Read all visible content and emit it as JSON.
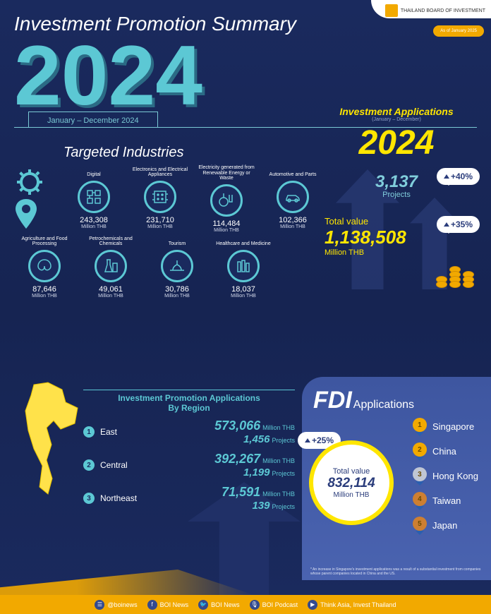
{
  "colors": {
    "bg_top": "#1a2a5e",
    "teal": "#5cc8d4",
    "yellow": "#ffe600",
    "gold": "#f2a900",
    "panel": "#3e56a0"
  },
  "header": {
    "title": "Investment Promotion Summary",
    "logo_text": "THAILAND BOARD OF INVESTMENT",
    "as_of": "As of January 2025",
    "year": "2024",
    "period": "January – December 2024"
  },
  "targeted": {
    "title": "Targeted Industries",
    "unit": "Million THB",
    "items": [
      {
        "label": "Digital",
        "value": "243,308"
      },
      {
        "label": "Electronics and Electrical Appliances",
        "value": "231,710"
      },
      {
        "label": "Electricity generated from Renewable Energy or Waste",
        "value": "114,484"
      },
      {
        "label": "Automotive and Parts",
        "value": "102,366"
      },
      {
        "label": "Agriculture and Food Processing",
        "value": "87,646"
      },
      {
        "label": "Petrochemicals and Chemicals",
        "value": "49,061"
      },
      {
        "label": "Tourism",
        "value": "30,786"
      },
      {
        "label": "Healthcare and Medicine",
        "value": "18,037"
      }
    ]
  },
  "applications": {
    "title": "Investment Applications",
    "subtitle": "(January – December)",
    "year": "2024",
    "projects_value": "3,137",
    "projects_label": "Projects",
    "projects_pct": "+40%",
    "total_label": "Total value",
    "total_value": "1,138,508",
    "total_unit": "Million THB",
    "total_pct": "+35%"
  },
  "region": {
    "title1": "Investment Promotion Applications",
    "title2": "By Region",
    "unit_value": "Million THB",
    "unit_proj": "Projects",
    "rows": [
      {
        "rank": "1",
        "name": "East",
        "value": "573,066",
        "projects": "1,456"
      },
      {
        "rank": "2",
        "name": "Central",
        "value": "392,267",
        "projects": "1,199"
      },
      {
        "rank": "3",
        "name": "Northeast",
        "value": "71,591",
        "projects": "139"
      }
    ]
  },
  "fdi": {
    "title_big": "FDI",
    "title_small": "Applications",
    "circle_label": "Total value",
    "circle_value": "832,114",
    "circle_unit": "Million THB",
    "pct": "+25%",
    "note": "* An increase in Singapore's investment applications was a result of a substantial investment from companies whose parent companies located in China and the US.",
    "list": [
      {
        "rank": "1",
        "name": "Singapore",
        "color": "#f2a900"
      },
      {
        "rank": "2",
        "name": "China",
        "color": "#f2a900"
      },
      {
        "rank": "3",
        "name": "Hong Kong",
        "color": "#c0c6d4"
      },
      {
        "rank": "4",
        "name": "Taiwan",
        "color": "#cd7f32"
      },
      {
        "rank": "5",
        "name": "Japan",
        "color": "#cd7f32"
      }
    ]
  },
  "footer": {
    "items": [
      {
        "icon": "line",
        "label": "@boinews"
      },
      {
        "icon": "fb",
        "label": "BOI News"
      },
      {
        "icon": "tw",
        "label": "BOI News"
      },
      {
        "icon": "pod",
        "label": "BOI Podcast"
      },
      {
        "icon": "yt",
        "label": "Think Asia, Invest Thailand"
      }
    ]
  }
}
